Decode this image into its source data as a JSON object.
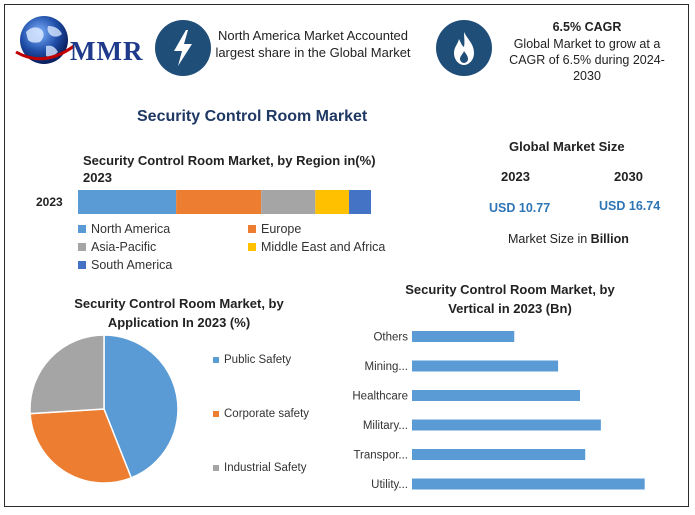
{
  "logo": {
    "text": "MMR"
  },
  "highlight1": {
    "text": "North America Market Accounted largest share in the Global Market",
    "icon": "lightning-icon"
  },
  "highlight2": {
    "title": "6.5% CAGR",
    "text": "Global Market to grow at a CAGR of 6.5% during 2024-2030",
    "icon": "flame-icon"
  },
  "main_title": "Security Control Room Market",
  "market_size": {
    "title": "Global Market Size",
    "years": [
      "2023",
      "2030"
    ],
    "values": [
      "USD 10.77",
      "USD 16.74"
    ],
    "unit_prefix": "Market Size in ",
    "unit_bold": "Billion"
  },
  "colors": {
    "blue": "#5b9bd5",
    "orange": "#ed7d31",
    "gray": "#a5a5a5",
    "yellow": "#ffc000",
    "darkblue": "#4472c4",
    "navy": "#1f4e79"
  },
  "chart_data": [
    {
      "type": "bar",
      "orientation": "horizontal",
      "stacked": true,
      "title": "Security Control Room Market, by Region in(%) 2023",
      "categories": [
        "2023"
      ],
      "series": [
        {
          "name": "North America",
          "values": [
            33.5
          ],
          "color": "#5b9bd5"
        },
        {
          "name": "Europe",
          "values": [
            29
          ],
          "color": "#ed7d31"
        },
        {
          "name": "Asia-Pacific",
          "values": [
            18.5
          ],
          "color": "#a5a5a5"
        },
        {
          "name": "Middle East and Africa",
          "values": [
            11.5
          ],
          "color": "#ffc000"
        },
        {
          "name": "South America",
          "values": [
            7.5
          ],
          "color": "#4472c4"
        }
      ],
      "legend_position": "bottom"
    },
    {
      "type": "pie",
      "title": "Security Control Room Market, by Application In 2023 (%)",
      "labels": [
        "Public Safety",
        "Corporate safety",
        "Industrial Safety"
      ],
      "values": [
        44,
        30,
        26
      ],
      "colors": [
        "#5b9bd5",
        "#ed7d31",
        "#a5a5a5"
      ],
      "legend_position": "right"
    },
    {
      "type": "bar",
      "orientation": "horizontal",
      "title": "Security Control Room Market, by Vertical in 2023 (Bn)",
      "categories": [
        "Others",
        "Mining...",
        "Healthcare",
        "Military...",
        "Transpor...",
        "Utility..."
      ],
      "values": [
        0.98,
        1.4,
        1.61,
        1.81,
        1.66,
        2.23
      ],
      "color": "#5b9bd5",
      "xlim": [
        0,
        2.3
      ],
      "grid": false
    }
  ]
}
